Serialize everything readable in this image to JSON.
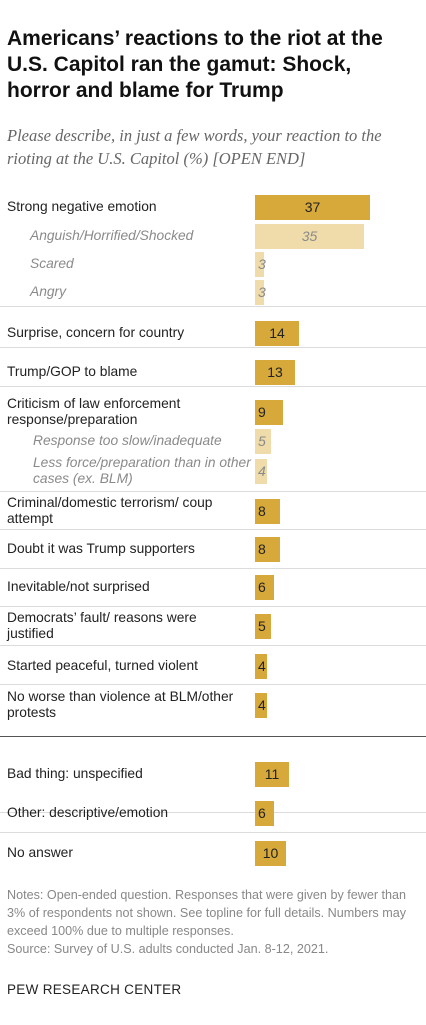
{
  "title": "Americans’ reactions to the riot at the U.S. Capitol ran the gamut: Shock, horror and blame for Trump",
  "subtitle": "Please describe, in just a few words, your reaction to the rioting at the U.S. Capitol (%) [OPEN END]",
  "notes": "Notes: Open-ended question. Responses that were given by fewer than 3% of respondents not shown. See topline for full details. Numbers may exceed 100% due to multiple responses.\nSource: Survey of U.S. adults conducted Jan. 8-12, 2021.",
  "source_org": "PEW RESEARCH CENTER",
  "colors": {
    "main_bar": "#d6a93a",
    "sub_bar": "#efdcaa"
  },
  "chart_data": {
    "type": "bar",
    "orientation": "horizontal",
    "unit": "%",
    "categories": [
      "Strong negative emotion",
      "Anguish/Horrified/Shocked",
      "Scared",
      "Angry",
      "Surprise, concern for country",
      "Trump/GOP to blame",
      "Criticism of law enforcement response/preparation",
      "Response too slow/inadequate",
      "Less force/preparation than in other cases (ex. BLM)",
      "Criminal/domestic terrorism/ coup attempt",
      "Doubt it was Trump supporters",
      "Inevitable/not surprised",
      "Democrats’ fault/ reasons were justified",
      "Started peaceful, turned violent",
      "No worse than violence at BLM/other protests",
      "Bad thing: unspecified",
      "Other: descriptive/emotion",
      "No answer"
    ],
    "values": [
      37,
      35,
      3,
      3,
      14,
      13,
      9,
      5,
      4,
      8,
      8,
      6,
      5,
      4,
      4,
      11,
      6,
      10
    ],
    "subcategory": [
      false,
      true,
      true,
      true,
      false,
      false,
      false,
      true,
      true,
      false,
      false,
      false,
      false,
      false,
      false,
      false,
      false,
      false
    ]
  }
}
